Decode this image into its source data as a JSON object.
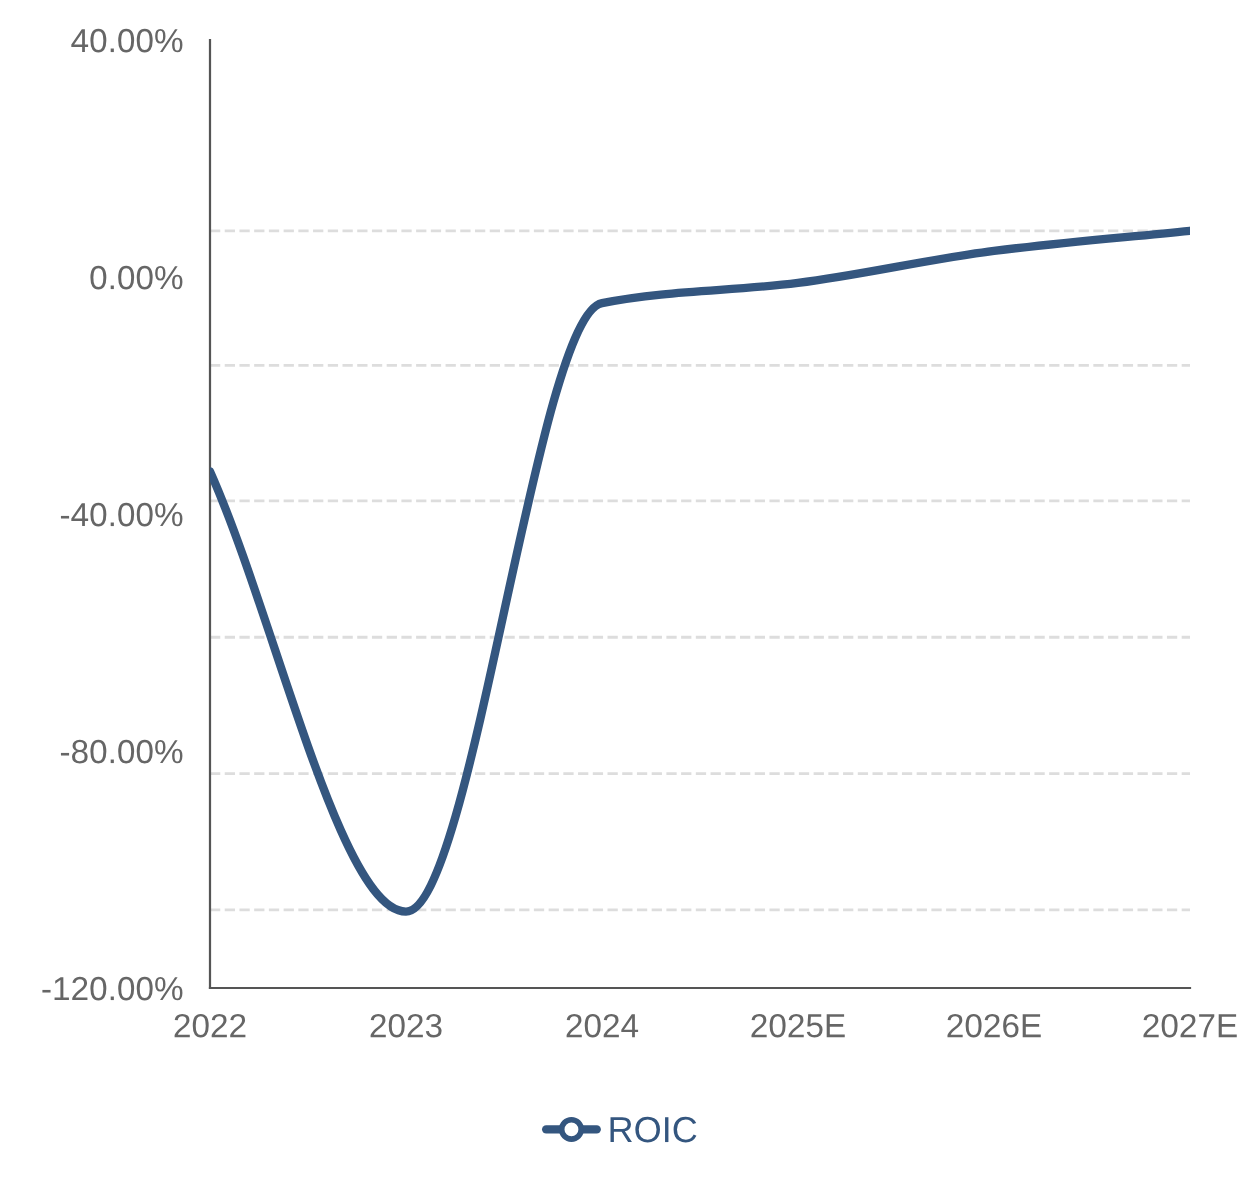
{
  "chart_data": {
    "type": "line",
    "categories": [
      "2022",
      "2023",
      "2024",
      "2025E",
      "2026E",
      "2027E"
    ],
    "series": [
      {
        "name": "ROIC",
        "color": "#34567f",
        "values": [
          -32.8,
          -107.1,
          -4.4,
          -1.0,
          4.4,
          7.8
        ]
      }
    ],
    "ylim": [
      -120,
      40
    ],
    "yticks": [
      {
        "value": -120,
        "label": "-120.00%"
      },
      {
        "value": -80,
        "label": "-80.00%"
      },
      {
        "value": -40,
        "label": "-40.00%"
      },
      {
        "value": 0,
        "label": "0.00%"
      },
      {
        "value": 40,
        "label": "40.00%"
      }
    ],
    "ref_lines": [
      {
        "axis": "y",
        "value": 7.8,
        "color": "#dddddd",
        "line_style": "dashed"
      },
      {
        "axis": "y",
        "value": -14.9,
        "color": "#dddddd",
        "line_style": "dashed"
      },
      {
        "axis": "y",
        "value": -37.8,
        "color": "#dddddd",
        "line_style": "dashed"
      },
      {
        "axis": "y",
        "value": -60.8,
        "color": "#dddddd",
        "line_style": "dashed"
      },
      {
        "axis": "y",
        "value": -83.8,
        "color": "#dddddd",
        "line_style": "dashed"
      },
      {
        "axis": "y",
        "value": -106.8,
        "color": "#dddddd",
        "line_style": "dashed"
      }
    ],
    "legend": "bottom",
    "marker": "none",
    "line_style": "solid",
    "grid": false
  }
}
